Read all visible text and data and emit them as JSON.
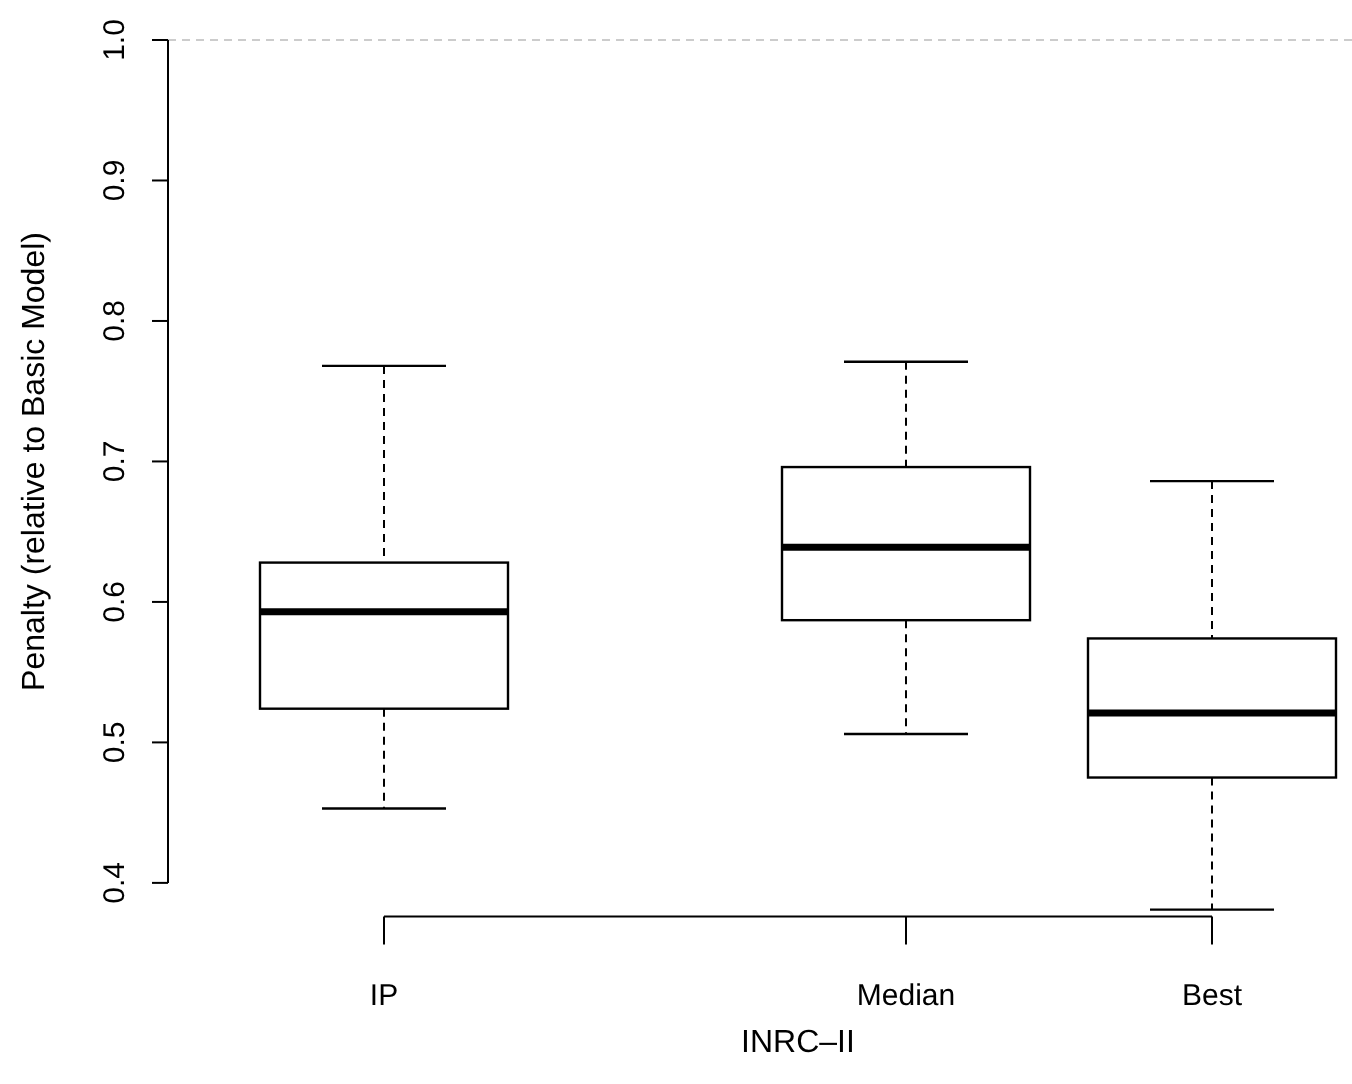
{
  "chart_data": {
    "type": "box",
    "xlabel": "INRC–II",
    "ylabel": "Penalty (relative to Basic Model)",
    "categories": [
      "IP",
      "Median",
      "Best"
    ],
    "boxes": [
      {
        "low": 0.453,
        "q1": 0.524,
        "median": 0.593,
        "q3": 0.628,
        "high": 0.768
      },
      {
        "low": 0.506,
        "q1": 0.587,
        "median": 0.639,
        "q3": 0.696,
        "high": 0.771
      },
      {
        "low": 0.381,
        "q1": 0.475,
        "median": 0.521,
        "q3": 0.574,
        "high": 0.686
      }
    ],
    "ylim": [
      0.376,
      1.0
    ],
    "yticks": [
      0.4,
      0.5,
      0.6,
      0.7,
      0.8,
      0.9,
      {
        "value": 1.0,
        "label": "1.0"
      }
    ],
    "ref_lines": [
      {
        "axis": "y",
        "value": 1.0,
        "color": "#cccccc",
        "line_style": "dashed"
      }
    ],
    "grid": false
  }
}
